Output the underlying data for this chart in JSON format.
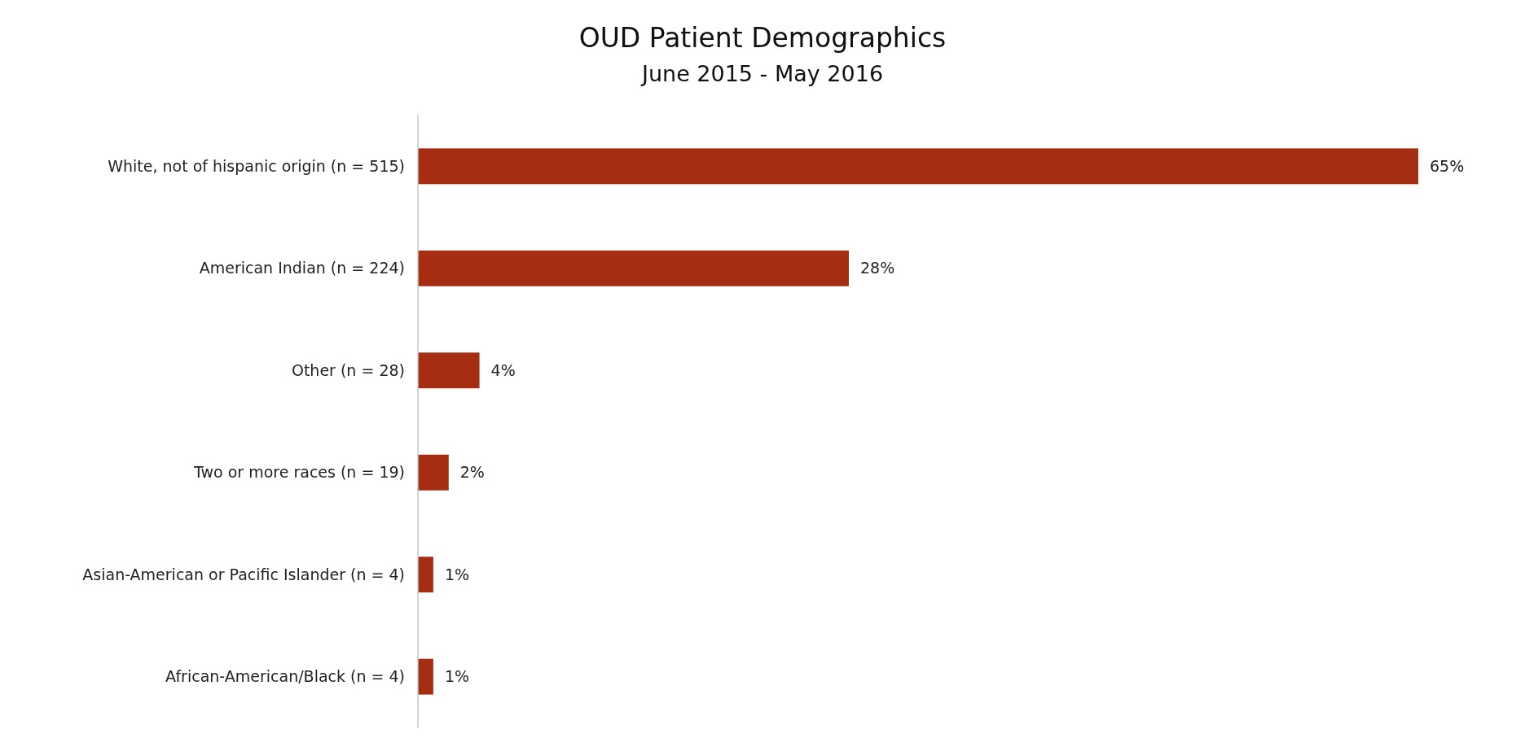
{
  "chart_data": {
    "type": "bar",
    "orientation": "horizontal",
    "title": "OUD Patient Demographics",
    "subtitle": "June 2015 - May 2016",
    "categories": [
      "White, not of hispanic origin (n = 515)",
      "American Indian (n = 224)",
      "Other (n = 28)",
      "Two or more races (n = 19)",
      "Asian-American or Pacific Islander (n = 4)",
      "African-American/Black (n = 4)"
    ],
    "values": [
      65,
      28,
      4,
      2,
      1,
      1
    ],
    "value_labels": [
      "65%",
      "28%",
      "4%",
      "2%",
      "1%",
      "1%"
    ],
    "color": "#a52e12"
  }
}
